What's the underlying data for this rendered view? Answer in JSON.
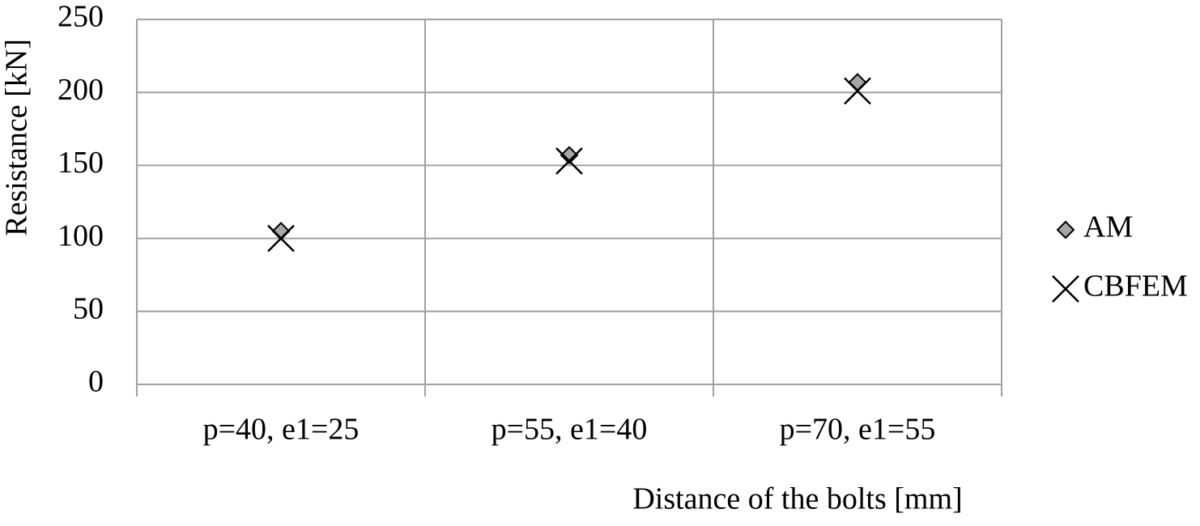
{
  "chart_data": {
    "type": "scatter",
    "x_label": "Distance of the bolts [mm]",
    "y_label": "Resistance [kN]",
    "categories": [
      "p=40, e1=25",
      "p=55, e1=40",
      "p=70, e1=55"
    ],
    "series": [
      {
        "name": "AM",
        "color": "#a6a6a6",
        "marker": "diamond",
        "values": [
          105,
          157,
          207
        ]
      },
      {
        "name": "CBFEM",
        "color": "#000000",
        "marker": "x",
        "values": [
          100,
          153,
          201
        ]
      }
    ],
    "ylim": [
      0,
      250
    ],
    "yticks": [
      0,
      50,
      100,
      150,
      200,
      250
    ],
    "grid": true,
    "legend": "right"
  }
}
